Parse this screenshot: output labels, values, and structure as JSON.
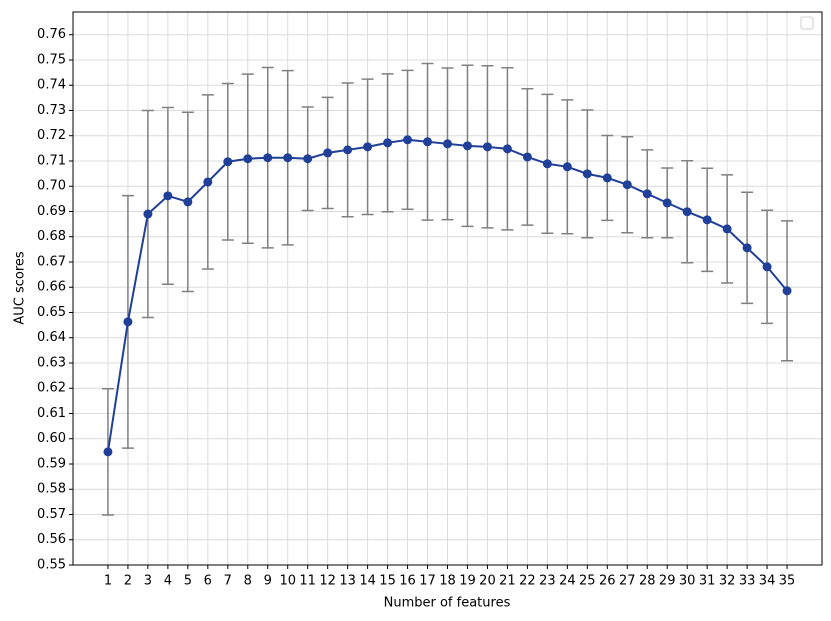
{
  "chart_data": {
    "type": "line",
    "x_label": "Number of features",
    "y_label": "AUC scores",
    "x": [
      1,
      2,
      3,
      4,
      5,
      6,
      7,
      8,
      9,
      10,
      11,
      12,
      13,
      14,
      15,
      16,
      17,
      18,
      19,
      20,
      21,
      22,
      23,
      24,
      25,
      26,
      27,
      28,
      29,
      30,
      31,
      32,
      33,
      34,
      35
    ],
    "values": [
      0.5948,
      0.6463,
      0.689,
      0.6962,
      0.6938,
      0.7017,
      0.7097,
      0.7109,
      0.7113,
      0.7113,
      0.7109,
      0.7132,
      0.7144,
      0.7156,
      0.7172,
      0.7184,
      0.7176,
      0.7168,
      0.716,
      0.7156,
      0.7148,
      0.7116,
      0.7089,
      0.7077,
      0.7049,
      0.7033,
      0.7006,
      0.697,
      0.6934,
      0.6899,
      0.6867,
      0.6831,
      0.6756,
      0.6681,
      0.6586
    ],
    "errors": [
      0.025,
      0.05,
      0.041,
      0.035,
      0.0355,
      0.0345,
      0.031,
      0.0335,
      0.0357,
      0.0345,
      0.0205,
      0.022,
      0.0265,
      0.0268,
      0.0273,
      0.0275,
      0.031,
      0.03,
      0.0319,
      0.0321,
      0.0321,
      0.027,
      0.0275,
      0.0265,
      0.0253,
      0.0168,
      0.019,
      0.0174,
      0.0138,
      0.0202,
      0.0204,
      0.0214,
      0.022,
      0.0224,
      0.0277
    ],
    "color": "#1f3f99",
    "error_color": "#808080",
    "xlim": [
      -0.75,
      36.75
    ],
    "xticks": [
      1,
      2,
      3,
      4,
      5,
      6,
      7,
      8,
      9,
      10,
      11,
      12,
      13,
      14,
      15,
      16,
      17,
      18,
      19,
      20,
      21,
      22,
      23,
      24,
      25,
      26,
      27,
      28,
      29,
      30,
      31,
      32,
      33,
      34,
      35
    ],
    "ylim": [
      0.55,
      0.769
    ],
    "yticks": [
      0.55,
      0.56,
      0.57,
      0.58,
      0.59,
      {
        "value": 0.6,
        "label": "0.60"
      },
      0.61,
      0.62,
      0.63,
      0.64,
      0.65,
      0.66,
      0.67,
      0.68,
      0.69,
      {
        "value": 0.7,
        "label": "0.70"
      },
      0.71,
      0.72,
      0.73,
      0.74,
      0.75,
      0.76
    ],
    "grid": true
  }
}
